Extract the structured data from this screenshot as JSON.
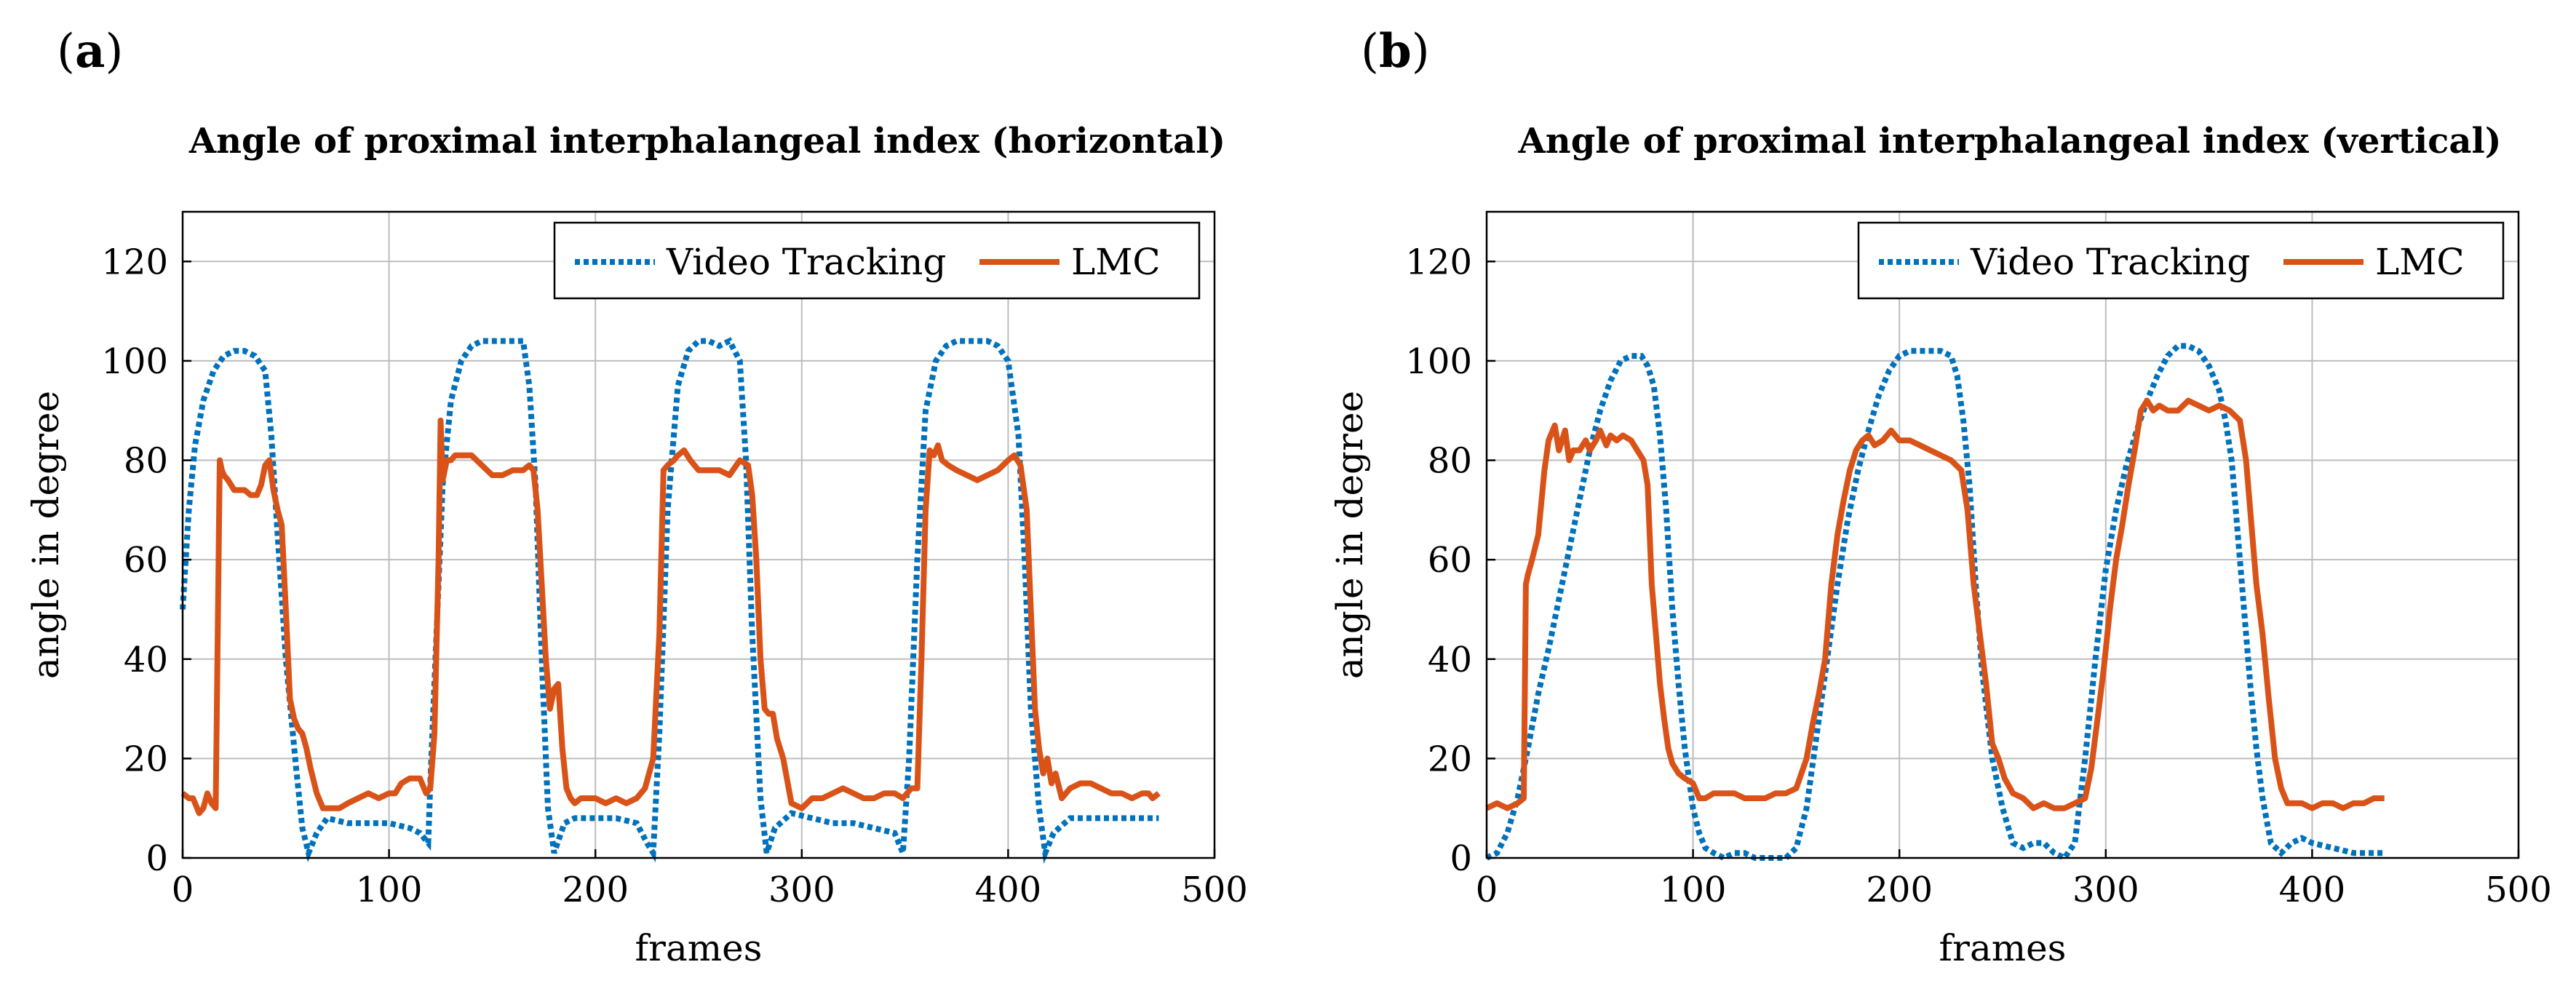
{
  "panels": [
    {
      "label_open": "(",
      "label_letter": "a",
      "label_close": ")"
    },
    {
      "label_open": "(",
      "label_letter": "b",
      "label_close": ")"
    }
  ],
  "colors": {
    "video_tracking": "#0072bd",
    "lmc": "#d95319"
  },
  "chart_data": [
    {
      "type": "line",
      "title": "Angle of proximal interphalangeal index (horizontal)",
      "xlabel": "frames",
      "ylabel": "angle in degree",
      "xlim": [
        0,
        500
      ],
      "ylim": [
        0,
        130
      ],
      "xticks": [
        0,
        100,
        200,
        300,
        400,
        500
      ],
      "yticks": [
        0,
        20,
        40,
        60,
        80,
        100,
        120
      ],
      "grid": true,
      "legend": "top-right",
      "series": [
        {
          "name": "Video Tracking",
          "style": "dotted",
          "color": "#0072bd",
          "x": [
            0,
            3,
            6,
            10,
            15,
            20,
            25,
            30,
            35,
            40,
            43,
            46,
            50,
            55,
            58,
            61,
            65,
            70,
            80,
            90,
            100,
            110,
            115,
            119,
            120,
            123,
            126,
            130,
            135,
            140,
            145,
            150,
            155,
            160,
            165,
            168,
            171,
            174,
            177,
            180,
            185,
            190,
            200,
            210,
            220,
            225,
            228,
            231,
            235,
            240,
            245,
            250,
            255,
            260,
            265,
            270,
            273,
            276,
            280,
            283,
            287,
            295,
            305,
            315,
            325,
            335,
            345,
            349,
            352,
            356,
            360,
            365,
            370,
            375,
            380,
            385,
            390,
            395,
            400,
            405,
            408,
            411,
            415,
            418,
            422,
            430,
            440,
            450,
            460,
            470,
            473
          ],
          "y": [
            50,
            70,
            83,
            92,
            98,
            101,
            102,
            102,
            101,
            98,
            85,
            65,
            40,
            18,
            6,
            1,
            5,
            8,
            7,
            7,
            7,
            6,
            5,
            3,
            15,
            45,
            75,
            92,
            100,
            103,
            104,
            104,
            104,
            104,
            104,
            95,
            75,
            40,
            10,
            1,
            7,
            8,
            8,
            8,
            7,
            3,
            1,
            25,
            70,
            95,
            102,
            104,
            104,
            103,
            104,
            100,
            80,
            45,
            12,
            1,
            6,
            9,
            8,
            7,
            7,
            6,
            5,
            1,
            20,
            60,
            90,
            100,
            103,
            104,
            104,
            104,
            104,
            103,
            100,
            85,
            60,
            30,
            10,
            1,
            5,
            8,
            8,
            8,
            8,
            8,
            8
          ]
        },
        {
          "name": "LMC",
          "style": "solid",
          "color": "#d95319",
          "x": [
            0,
            3,
            5,
            8,
            10,
            12,
            14,
            16,
            18,
            19,
            20,
            22,
            25,
            28,
            30,
            33,
            36,
            38,
            40,
            42,
            44,
            46,
            48,
            50,
            52,
            54,
            56,
            58,
            60,
            62,
            65,
            68,
            72,
            76,
            80,
            85,
            90,
            95,
            100,
            103,
            106,
            110,
            115,
            118,
            120,
            122,
            124,
            125,
            126,
            128,
            130,
            132,
            135,
            140,
            145,
            150,
            155,
            160,
            165,
            168,
            170,
            172,
            174,
            176,
            178,
            180,
            182,
            184,
            186,
            188,
            190,
            193,
            196,
            200,
            205,
            210,
            215,
            220,
            224,
            228,
            231,
            233,
            235,
            238,
            240,
            243,
            246,
            250,
            255,
            260,
            265,
            270,
            274,
            276,
            278,
            280,
            282,
            284,
            286,
            288,
            291,
            295,
            300,
            305,
            310,
            315,
            320,
            325,
            330,
            335,
            340,
            345,
            349,
            353,
            356,
            358,
            360,
            362,
            364,
            366,
            368,
            371,
            375,
            380,
            385,
            390,
            395,
            400,
            403,
            406,
            409,
            411,
            413,
            415,
            417,
            419,
            421,
            423,
            426,
            430,
            435,
            440,
            445,
            450,
            455,
            460,
            465,
            468,
            470,
            473
          ],
          "y": [
            13,
            12,
            12,
            9,
            10,
            13,
            11,
            10,
            80,
            78,
            77,
            76,
            74,
            74,
            74,
            73,
            73,
            75,
            79,
            80,
            74,
            70,
            67,
            50,
            32,
            28,
            26,
            25,
            22,
            18,
            13,
            10,
            10,
            10,
            11,
            12,
            13,
            12,
            13,
            13,
            15,
            16,
            16,
            13,
            14,
            25,
            60,
            88,
            76,
            80,
            80,
            81,
            81,
            81,
            79,
            77,
            77,
            78,
            78,
            79,
            78,
            70,
            55,
            40,
            30,
            34,
            35,
            22,
            14,
            12,
            11,
            12,
            12,
            12,
            11,
            12,
            11,
            12,
            14,
            20,
            45,
            78,
            79,
            80,
            81,
            82,
            80,
            78,
            78,
            78,
            77,
            80,
            79,
            73,
            60,
            40,
            30,
            29,
            29,
            24,
            20,
            11,
            10,
            12,
            12,
            13,
            14,
            13,
            12,
            12,
            13,
            13,
            12,
            14,
            14,
            40,
            70,
            82,
            81,
            83,
            80,
            79,
            78,
            77,
            76,
            77,
            78,
            80,
            81,
            79,
            70,
            50,
            30,
            22,
            17,
            20,
            15,
            17,
            12,
            14,
            15,
            15,
            14,
            13,
            13,
            12,
            13,
            13,
            12,
            13
          ]
        }
      ]
    },
    {
      "type": "line",
      "title": "Angle of proximal interphalangeal index (vertical)",
      "xlabel": "frames",
      "ylabel": "angle in degree",
      "xlim": [
        0,
        500
      ],
      "ylim": [
        0,
        130
      ],
      "xticks": [
        0,
        100,
        200,
        300,
        400,
        500
      ],
      "yticks": [
        0,
        20,
        40,
        60,
        80,
        100,
        120
      ],
      "grid": true,
      "legend": "top-right",
      "series": [
        {
          "name": "Video Tracking",
          "style": "dotted",
          "color": "#0072bd",
          "x": [
            0,
            5,
            10,
            15,
            20,
            25,
            30,
            35,
            40,
            45,
            50,
            55,
            60,
            65,
            70,
            75,
            78,
            81,
            84,
            87,
            90,
            93,
            96,
            100,
            103,
            106,
            110,
            115,
            120,
            125,
            130,
            135,
            140,
            145,
            150,
            155,
            160,
            165,
            170,
            175,
            180,
            185,
            190,
            195,
            200,
            205,
            210,
            215,
            220,
            225,
            228,
            231,
            234,
            237,
            240,
            245,
            250,
            255,
            260,
            265,
            270,
            275,
            280,
            285,
            290,
            295,
            300,
            305,
            310,
            315,
            320,
            325,
            330,
            335,
            340,
            345,
            350,
            355,
            358,
            361,
            364,
            367,
            370,
            373,
            376,
            380,
            385,
            390,
            395,
            400,
            410,
            420,
            430,
            435
          ],
          "y": [
            0,
            1,
            5,
            12,
            22,
            33,
            42,
            52,
            62,
            72,
            82,
            90,
            96,
            100,
            101,
            101,
            99,
            95,
            85,
            70,
            50,
            35,
            22,
            10,
            5,
            2,
            1,
            0,
            1,
            1,
            0,
            0,
            0,
            0,
            2,
            10,
            25,
            40,
            55,
            68,
            78,
            86,
            93,
            98,
            101,
            102,
            102,
            102,
            102,
            101,
            97,
            88,
            75,
            55,
            38,
            20,
            10,
            3,
            2,
            3,
            3,
            1,
            0,
            3,
            20,
            40,
            58,
            70,
            79,
            86,
            92,
            97,
            101,
            103,
            103,
            102,
            99,
            94,
            88,
            80,
            65,
            50,
            35,
            22,
            12,
            3,
            1,
            3,
            4,
            3,
            2,
            1,
            1,
            1
          ]
        },
        {
          "name": "LMC",
          "style": "solid",
          "color": "#d95319",
          "x": [
            0,
            5,
            10,
            15,
            18,
            19,
            20,
            22,
            25,
            28,
            30,
            33,
            35,
            38,
            40,
            42,
            45,
            48,
            50,
            53,
            55,
            58,
            60,
            63,
            66,
            70,
            73,
            76,
            78,
            80,
            82,
            84,
            86,
            88,
            90,
            93,
            96,
            100,
            103,
            106,
            110,
            115,
            120,
            125,
            130,
            135,
            140,
            145,
            150,
            155,
            158,
            161,
            164,
            167,
            170,
            173,
            176,
            179,
            182,
            185,
            188,
            192,
            196,
            200,
            205,
            210,
            215,
            220,
            225,
            230,
            233,
            236,
            239,
            242,
            245,
            248,
            251,
            255,
            260,
            265,
            270,
            275,
            280,
            285,
            290,
            293,
            296,
            299,
            302,
            305,
            308,
            311,
            314,
            317,
            320,
            323,
            326,
            330,
            335,
            340,
            345,
            350,
            355,
            360,
            365,
            368,
            370,
            373,
            376,
            379,
            382,
            385,
            388,
            391,
            395,
            400,
            405,
            410,
            415,
            420,
            425,
            430,
            435
          ],
          "y": [
            10,
            11,
            10,
            11,
            12,
            55,
            57,
            60,
            65,
            78,
            84,
            87,
            82,
            86,
            80,
            82,
            82,
            84,
            82,
            84,
            86,
            83,
            85,
            84,
            85,
            84,
            82,
            80,
            75,
            55,
            45,
            35,
            28,
            22,
            19,
            17,
            16,
            15,
            12,
            12,
            13,
            13,
            13,
            12,
            12,
            12,
            13,
            13,
            14,
            20,
            27,
            33,
            40,
            55,
            65,
            72,
            78,
            82,
            84,
            85,
            83,
            84,
            86,
            84,
            84,
            83,
            82,
            81,
            80,
            78,
            70,
            55,
            45,
            35,
            23,
            20,
            16,
            13,
            12,
            10,
            11,
            10,
            10,
            11,
            12,
            18,
            28,
            38,
            50,
            60,
            67,
            75,
            82,
            90,
            92,
            90,
            91,
            90,
            90,
            92,
            91,
            90,
            91,
            90,
            88,
            80,
            70,
            55,
            45,
            32,
            20,
            14,
            11,
            11,
            11,
            10,
            11,
            11,
            10,
            11,
            11,
            12,
            12
          ]
        }
      ]
    }
  ]
}
